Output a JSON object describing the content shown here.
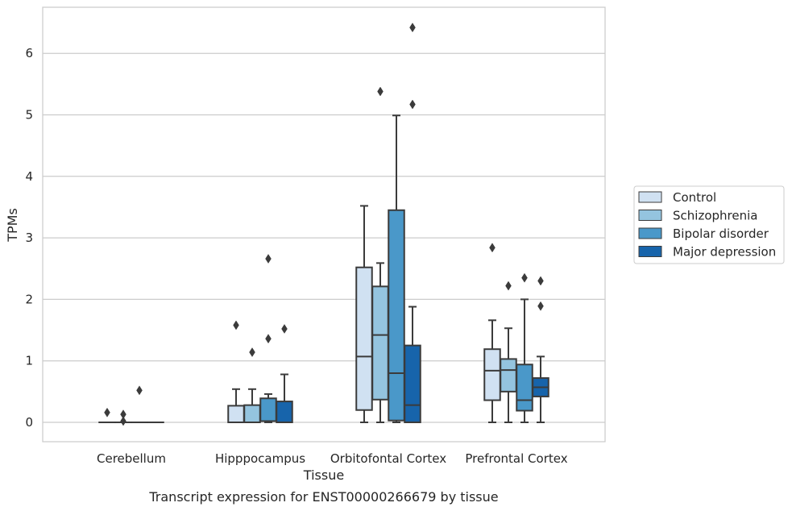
{
  "chart_data": {
    "type": "box",
    "title": "",
    "caption": "Transcript expression for ENST00000266679 by tissue",
    "xlabel": "Tissue",
    "ylabel": "TPMs",
    "ylim": [
      -0.3,
      6.75
    ],
    "yticks": [
      "0",
      "1",
      "2",
      "3",
      "4",
      "5",
      "6"
    ],
    "grid": true,
    "legend_position": "right",
    "categories": [
      "Cerebellum",
      "Hipppocampus",
      "Orbitofontal Cortex",
      "Prefrontal Cortex"
    ],
    "series": [
      {
        "name": "Control",
        "color": "#d0e1f2",
        "boxes": [
          {
            "q1": 0,
            "median": 0,
            "q3": 0,
            "whisker_low": 0,
            "whisker_high": 0,
            "outliers": [
              0.16
            ]
          },
          {
            "q1": 0,
            "median": 0,
            "q3": 0.27,
            "whisker_low": 0,
            "whisker_high": 0.54,
            "outliers": [
              1.58
            ]
          },
          {
            "q1": 0.2,
            "median": 1.07,
            "q3": 2.52,
            "whisker_low": 0,
            "whisker_high": 3.52,
            "outliers": []
          },
          {
            "q1": 0.36,
            "median": 0.84,
            "q3": 1.19,
            "whisker_low": 0,
            "whisker_high": 1.66,
            "outliers": [
              2.84
            ]
          }
        ]
      },
      {
        "name": "Schizophrenia",
        "color": "#94c4df",
        "boxes": [
          {
            "q1": 0,
            "median": 0,
            "q3": 0,
            "whisker_low": 0,
            "whisker_high": 0,
            "outliers": [
              0.02,
              0.13
            ]
          },
          {
            "q1": 0,
            "median": 0,
            "q3": 0.28,
            "whisker_low": 0,
            "whisker_high": 0.54,
            "outliers": [
              1.14
            ]
          },
          {
            "q1": 0.37,
            "median": 1.42,
            "q3": 2.21,
            "whisker_low": 0,
            "whisker_high": 2.59,
            "outliers": [
              5.38
            ]
          },
          {
            "q1": 0.5,
            "median": 0.85,
            "q3": 1.03,
            "whisker_low": 0,
            "whisker_high": 1.53,
            "outliers": [
              2.22
            ]
          }
        ]
      },
      {
        "name": "Bipolar disorder",
        "color": "#4a98c9",
        "boxes": [
          {
            "q1": 0,
            "median": 0,
            "q3": 0,
            "whisker_low": 0,
            "whisker_high": 0,
            "outliers": [
              0.52
            ]
          },
          {
            "q1": 0.02,
            "median": 0.02,
            "q3": 0.39,
            "whisker_low": 0,
            "whisker_high": 0.46,
            "outliers": [
              1.36,
              2.66
            ]
          },
          {
            "q1": 0.03,
            "median": 0.8,
            "q3": 3.45,
            "whisker_low": 0,
            "whisker_high": 4.99,
            "outliers": []
          },
          {
            "q1": 0.19,
            "median": 0.36,
            "q3": 0.94,
            "whisker_low": 0,
            "whisker_high": 2.0,
            "outliers": [
              2.35
            ]
          }
        ]
      },
      {
        "name": "Major depression",
        "color": "#1764ab",
        "boxes": [
          {
            "q1": 0,
            "median": 0,
            "q3": 0,
            "whisker_low": 0,
            "whisker_high": 0,
            "outliers": []
          },
          {
            "q1": 0,
            "median": 0,
            "q3": 0.34,
            "whisker_low": 0,
            "whisker_high": 0.78,
            "outliers": [
              1.52
            ]
          },
          {
            "q1": 0,
            "median": 0.28,
            "q3": 1.25,
            "whisker_low": 0,
            "whisker_high": 1.88,
            "outliers": [
              5.17,
              6.42
            ]
          },
          {
            "q1": 0.42,
            "median": 0.57,
            "q3": 0.72,
            "whisker_low": 0,
            "whisker_high": 1.07,
            "outliers": [
              1.89,
              2.3
            ]
          }
        ]
      }
    ]
  }
}
